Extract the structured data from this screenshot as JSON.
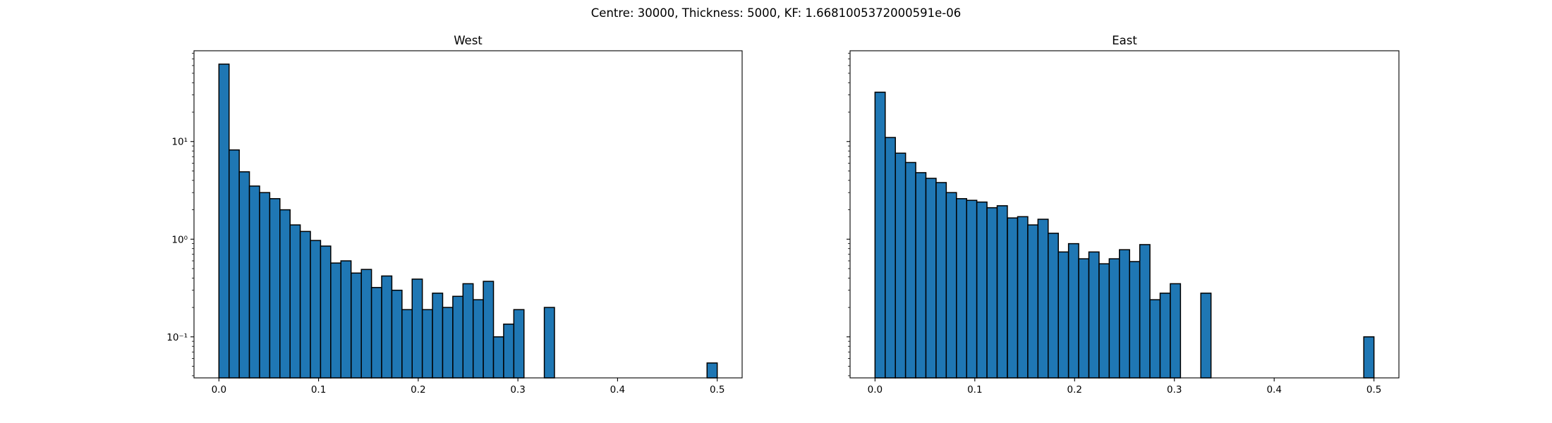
{
  "figure": {
    "suptitle": "Centre: 30000, Thickness: 5000, KF: 1.6681005372000591e-06"
  },
  "chart_data": [
    {
      "type": "bar",
      "title": "West",
      "yscale": "log",
      "xlim": [
        -0.025,
        0.525
      ],
      "ylim": [
        0.038,
        85
      ],
      "bin_width": 0.0102,
      "bar_color": "#1f77b4",
      "edge_color": "#000000",
      "x_ticks": [
        "0.0",
        "0.1",
        "0.2",
        "0.3",
        "0.4",
        "0.5"
      ],
      "x_tick_values": [
        0.0,
        0.1,
        0.2,
        0.3,
        0.4,
        0.5
      ],
      "y_ticks": [
        "10⁻¹",
        "10⁰",
        "10¹"
      ],
      "y_tick_values": [
        0.1,
        1,
        10
      ],
      "bins": [
        {
          "x": 0.0,
          "value": 62
        },
        {
          "x": 0.0102,
          "value": 8.2
        },
        {
          "x": 0.0204,
          "value": 4.9
        },
        {
          "x": 0.0306,
          "value": 3.5
        },
        {
          "x": 0.0408,
          "value": 3.0
        },
        {
          "x": 0.051,
          "value": 2.6
        },
        {
          "x": 0.0612,
          "value": 2.0
        },
        {
          "x": 0.0714,
          "value": 1.4
        },
        {
          "x": 0.0816,
          "value": 1.2
        },
        {
          "x": 0.0918,
          "value": 0.97
        },
        {
          "x": 0.102,
          "value": 0.85
        },
        {
          "x": 0.1122,
          "value": 0.57
        },
        {
          "x": 0.1224,
          "value": 0.6
        },
        {
          "x": 0.1327,
          "value": 0.45
        },
        {
          "x": 0.1429,
          "value": 0.49
        },
        {
          "x": 0.1531,
          "value": 0.32
        },
        {
          "x": 0.1633,
          "value": 0.42
        },
        {
          "x": 0.1735,
          "value": 0.3
        },
        {
          "x": 0.1837,
          "value": 0.19
        },
        {
          "x": 0.1939,
          "value": 0.39
        },
        {
          "x": 0.2041,
          "value": 0.19
        },
        {
          "x": 0.2143,
          "value": 0.28
        },
        {
          "x": 0.2245,
          "value": 0.2
        },
        {
          "x": 0.2347,
          "value": 0.26
        },
        {
          "x": 0.2449,
          "value": 0.35
        },
        {
          "x": 0.2551,
          "value": 0.24
        },
        {
          "x": 0.2653,
          "value": 0.37
        },
        {
          "x": 0.2755,
          "value": 0.1
        },
        {
          "x": 0.2857,
          "value": 0.135
        },
        {
          "x": 0.2959,
          "value": 0.19
        },
        {
          "x": 0.3265,
          "value": 0.2
        },
        {
          "x": 0.4898,
          "value": 0.054
        }
      ]
    },
    {
      "type": "bar",
      "title": "East",
      "yscale": "log",
      "xlim": [
        -0.025,
        0.525
      ],
      "ylim": [
        0.038,
        85
      ],
      "bin_width": 0.0102,
      "bar_color": "#1f77b4",
      "edge_color": "#000000",
      "x_ticks": [
        "0.0",
        "0.1",
        "0.2",
        "0.3",
        "0.4",
        "0.5"
      ],
      "x_tick_values": [
        0.0,
        0.1,
        0.2,
        0.3,
        0.4,
        0.5
      ],
      "y_ticks": [],
      "y_tick_values": [
        0.1,
        1,
        10
      ],
      "bins": [
        {
          "x": 0.0,
          "value": 32
        },
        {
          "x": 0.0102,
          "value": 11
        },
        {
          "x": 0.0204,
          "value": 7.6
        },
        {
          "x": 0.0306,
          "value": 6.1
        },
        {
          "x": 0.0408,
          "value": 4.8
        },
        {
          "x": 0.051,
          "value": 4.2
        },
        {
          "x": 0.0612,
          "value": 3.8
        },
        {
          "x": 0.0714,
          "value": 3.0
        },
        {
          "x": 0.0816,
          "value": 2.6
        },
        {
          "x": 0.0918,
          "value": 2.5
        },
        {
          "x": 0.102,
          "value": 2.4
        },
        {
          "x": 0.1122,
          "value": 2.1
        },
        {
          "x": 0.1224,
          "value": 2.2
        },
        {
          "x": 0.1327,
          "value": 1.65
        },
        {
          "x": 0.1429,
          "value": 1.7
        },
        {
          "x": 0.1531,
          "value": 1.4
        },
        {
          "x": 0.1633,
          "value": 1.6
        },
        {
          "x": 0.1735,
          "value": 1.15
        },
        {
          "x": 0.1837,
          "value": 0.74
        },
        {
          "x": 0.1939,
          "value": 0.9
        },
        {
          "x": 0.2041,
          "value": 0.63
        },
        {
          "x": 0.2143,
          "value": 0.74
        },
        {
          "x": 0.2245,
          "value": 0.56
        },
        {
          "x": 0.2347,
          "value": 0.63
        },
        {
          "x": 0.2449,
          "value": 0.78
        },
        {
          "x": 0.2551,
          "value": 0.59
        },
        {
          "x": 0.2653,
          "value": 0.88
        },
        {
          "x": 0.2755,
          "value": 0.24
        },
        {
          "x": 0.2857,
          "value": 0.28
        },
        {
          "x": 0.2959,
          "value": 0.35
        },
        {
          "x": 0.3265,
          "value": 0.28
        },
        {
          "x": 0.4898,
          "value": 0.1
        }
      ]
    }
  ]
}
